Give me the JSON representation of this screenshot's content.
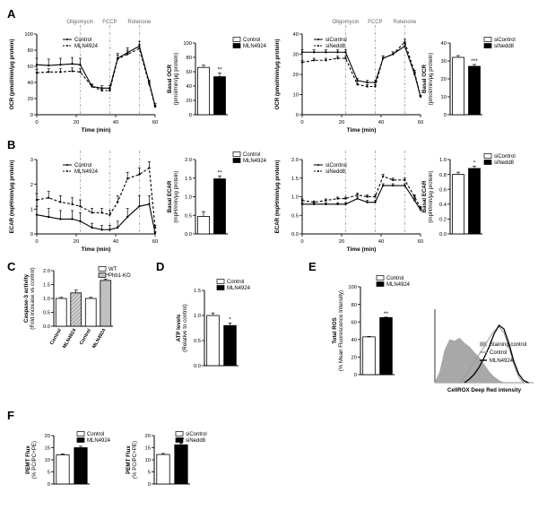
{
  "panels": [
    {
      "letter": "A"
    },
    {
      "letter": "B"
    },
    {
      "letter": "C"
    },
    {
      "letter": "D"
    },
    {
      "letter": "E"
    },
    {
      "letter": "F"
    }
  ],
  "colors": {
    "line": "#000000",
    "inj": "#999999",
    "inj_label": "#666666",
    "fill_dark": "#000000",
    "fill_light": "#ffffff",
    "fill_hatch": "#bfbfbf",
    "hist_gray": "#a8a8a8",
    "hist_light": "#999999"
  },
  "chart_data": [
    {
      "id": "A1",
      "type": "line",
      "xlabel": "Time (min)",
      "ylabel": "OCR (pmol/min/μg protein)",
      "xlim": [
        0,
        60
      ],
      "ylim": [
        0,
        100
      ],
      "xticks": [
        "0",
        "20",
        "40",
        "60"
      ],
      "yticks": [
        "0",
        "20",
        "40",
        "60",
        "80",
        "100"
      ],
      "injections": [
        {
          "label": "Oligomycin",
          "x": 22
        },
        {
          "label": "FCCP",
          "x": 37
        },
        {
          "label": "Rotenone",
          "x": 52
        }
      ],
      "legend": [
        "Control",
        "MLN4924"
      ],
      "series": [
        {
          "name": "Control",
          "dash": false,
          "x": [
            0,
            6,
            12,
            18,
            22,
            28,
            33,
            37,
            41,
            46,
            52,
            57,
            60
          ],
          "y": [
            62,
            61,
            62,
            63,
            62,
            35,
            33,
            33,
            70,
            77,
            85,
            40,
            11
          ],
          "err": [
            8,
            8,
            8,
            8,
            8,
            3,
            3,
            3,
            6,
            6,
            6,
            3,
            3
          ]
        },
        {
          "name": "MLN4924",
          "dash": true,
          "x": [
            0,
            6,
            12,
            18,
            22,
            28,
            33,
            37,
            41,
            46,
            52,
            57,
            60
          ],
          "y": [
            52,
            53,
            53,
            54,
            53,
            35,
            30,
            30,
            69,
            75,
            82,
            38,
            10
          ],
          "err": [
            4,
            4,
            4,
            4,
            4,
            2,
            2,
            2,
            5,
            5,
            5,
            3,
            2
          ]
        }
      ]
    },
    {
      "id": "A2",
      "type": "bar",
      "xlabel": "",
      "ylabel": "Basal OCR (pmol/min/μg protein)",
      "ylim": [
        0,
        100
      ],
      "yticks": [
        "0",
        "20",
        "40",
        "60",
        "80",
        "100"
      ],
      "categories": [
        "Control",
        "MLN4924"
      ],
      "values": [
        66,
        53
      ],
      "err": [
        3,
        5
      ],
      "fills": [
        "white",
        "black"
      ],
      "sig": [
        {
          "bar": 1,
          "text": "**"
        }
      ],
      "legend": [
        "Control",
        "MLN4924"
      ]
    },
    {
      "id": "A3",
      "type": "line",
      "xlabel": "Time (min)",
      "ylabel": "OCR (pmol/min/μg protein)",
      "xlim": [
        0,
        60
      ],
      "ylim": [
        0,
        40
      ],
      "xticks": [
        "0",
        "20",
        "40",
        "60"
      ],
      "yticks": [
        "0",
        "10",
        "20",
        "30",
        "40"
      ],
      "injections": [
        {
          "label": "Oligomycin",
          "x": 22
        },
        {
          "label": "FCCP",
          "x": 37
        },
        {
          "label": "Rotenone",
          "x": 52
        }
      ],
      "legend": [
        "siControl",
        "siNedd8"
      ],
      "series": [
        {
          "name": "siControl",
          "dash": false,
          "x": [
            0,
            6,
            12,
            18,
            22,
            28,
            33,
            37,
            41,
            46,
            52,
            57,
            60
          ],
          "y": [
            31,
            31,
            31,
            31,
            31,
            17,
            16,
            16,
            28,
            30,
            34,
            20,
            9
          ],
          "err": [
            1.2,
            1.2,
            1.2,
            1.2,
            1.2,
            1,
            1,
            1,
            1.2,
            1.2,
            1.5,
            1,
            0.5
          ]
        },
        {
          "name": "siNedd8",
          "dash": true,
          "x": [
            0,
            6,
            12,
            18,
            22,
            28,
            33,
            37,
            41,
            46,
            52,
            57,
            60
          ],
          "y": [
            26,
            27,
            27,
            28,
            28,
            15,
            14,
            14,
            28,
            30,
            36,
            21,
            9
          ],
          "err": [
            1,
            1,
            1,
            1,
            1,
            1,
            1,
            1,
            1.2,
            1.2,
            1.5,
            1,
            0.5
          ]
        }
      ]
    },
    {
      "id": "A4",
      "type": "bar",
      "xlabel": "",
      "ylabel": "Basal OCR (pmol/min/μg protein)",
      "ylim": [
        0,
        40
      ],
      "yticks": [
        "0",
        "10",
        "20",
        "30",
        "40"
      ],
      "categories": [
        "siControl",
        "siNedd8"
      ],
      "values": [
        32,
        27
      ],
      "err": [
        1,
        1
      ],
      "fills": [
        "white",
        "black"
      ],
      "sig": [
        {
          "bar": 1,
          "text": "***"
        }
      ],
      "legend": [
        "siControl",
        "siNedd8"
      ]
    },
    {
      "id": "B1",
      "type": "line",
      "xlabel": "Time (min)",
      "ylabel": "ECAR (mpH/min/μg protein)",
      "xlim": [
        0,
        60
      ],
      "ylim": [
        0,
        3.5
      ],
      "xticks": [
        "0",
        "20",
        "40",
        "60"
      ],
      "yticks": [
        "0",
        "1",
        "2",
        "3"
      ],
      "injections": [
        {
          "label": "",
          "x": 22
        },
        {
          "label": "",
          "x": 37
        },
        {
          "label": "",
          "x": 52
        }
      ],
      "legend": [
        "Control",
        "MLN4924"
      ],
      "series": [
        {
          "name": "Control",
          "dash": false,
          "x": [
            0,
            6,
            12,
            18,
            22,
            28,
            33,
            37,
            41,
            46,
            52,
            57,
            60
          ],
          "y": [
            0.9,
            0.8,
            0.7,
            0.7,
            0.6,
            0.3,
            0.2,
            0.2,
            0.3,
            0.8,
            1.3,
            1.4,
            0.05
          ],
          "err": [
            0.4,
            0.4,
            0.4,
            0.4,
            0.4,
            0.2,
            0.2,
            0.2,
            0.3,
            0.4,
            0.5,
            0.4,
            0.05
          ]
        },
        {
          "name": "MLN4924",
          "dash": true,
          "x": [
            0,
            6,
            12,
            18,
            22,
            28,
            33,
            37,
            41,
            46,
            52,
            57,
            60
          ],
          "y": [
            1.6,
            1.7,
            1.5,
            1.4,
            1.3,
            1.0,
            1.0,
            0.9,
            1.5,
            2.6,
            2.8,
            3.1,
            0.3
          ],
          "err": [
            0.3,
            0.3,
            0.3,
            0.3,
            0.3,
            0.2,
            0.2,
            0.2,
            0.3,
            0.3,
            0.3,
            0.3,
            0.1
          ]
        }
      ]
    },
    {
      "id": "B2",
      "type": "bar",
      "xlabel": "",
      "ylabel": "Basal ECAR (mpH/min/μg protein)",
      "ylim": [
        0,
        2.0
      ],
      "yticks": [
        "0.0",
        "0.5",
        "1.0",
        "1.5",
        "2.0"
      ],
      "categories": [
        "Control",
        "MLN4924"
      ],
      "values": [
        0.47,
        1.48
      ],
      "err": [
        0.13,
        0.08
      ],
      "fills": [
        "white",
        "black"
      ],
      "sig": [
        {
          "bar": 1,
          "text": "**"
        }
      ],
      "legend": [
        "Control",
        "MLN4924"
      ]
    },
    {
      "id": "B3",
      "type": "line",
      "xlabel": "Time (min)",
      "ylabel": "ECAR (mpH/min/μg protein)",
      "xlim": [
        0,
        60
      ],
      "ylim": [
        0,
        2.0
      ],
      "xticks": [
        "0",
        "20",
        "40",
        "60"
      ],
      "yticks": [
        "0.0",
        "0.5",
        "1.0",
        "1.5",
        "2.0"
      ],
      "injections": [
        {
          "label": "",
          "x": 22
        },
        {
          "label": "",
          "x": 37
        },
        {
          "label": "",
          "x": 52
        }
      ],
      "legend": [
        "siControl",
        "siNedd8"
      ],
      "series": [
        {
          "name": "siControl",
          "dash": false,
          "x": [
            0,
            6,
            12,
            18,
            22,
            28,
            33,
            37,
            41,
            46,
            52,
            57,
            60
          ],
          "y": [
            0.8,
            0.8,
            0.8,
            0.8,
            0.8,
            0.95,
            0.85,
            0.85,
            1.3,
            1.3,
            1.3,
            0.9,
            0.65
          ],
          "err": [
            0.04,
            0.04,
            0.04,
            0.04,
            0.04,
            0.05,
            0.05,
            0.05,
            0.05,
            0.05,
            0.05,
            0.05,
            0.04
          ]
        },
        {
          "name": "siNedd8",
          "dash": true,
          "x": [
            0,
            6,
            12,
            18,
            22,
            28,
            33,
            37,
            41,
            46,
            52,
            57,
            60
          ],
          "y": [
            0.9,
            0.85,
            0.9,
            0.95,
            0.95,
            1.05,
            1.0,
            1.0,
            1.55,
            1.45,
            1.45,
            1.0,
            0.7
          ],
          "err": [
            0.04,
            0.04,
            0.04,
            0.04,
            0.04,
            0.05,
            0.05,
            0.05,
            0.05,
            0.05,
            0.05,
            0.05,
            0.04
          ]
        }
      ]
    },
    {
      "id": "B4",
      "type": "bar",
      "xlabel": "",
      "ylabel": "Basal ECAR (mpH/min/μg protein)",
      "ylim": [
        0,
        1.0
      ],
      "yticks": [
        "0.0",
        "0.2",
        "0.4",
        "0.6",
        "0.8",
        "1.0"
      ],
      "categories": [
        "siControl",
        "siNedd8"
      ],
      "values": [
        0.8,
        0.88
      ],
      "err": [
        0.03,
        0.03
      ],
      "fills": [
        "white",
        "black"
      ],
      "sig": [
        {
          "bar": 1,
          "text": "*"
        }
      ],
      "legend": [
        "siControl",
        "siNedd8"
      ]
    },
    {
      "id": "C",
      "type": "bar",
      "xlabel": "",
      "ylabel": "Caspase-3 activity (Fold increase vs control)",
      "ylim": [
        0,
        2.0
      ],
      "yticks": [
        "0.0",
        "0.5",
        "1.0",
        "1.5",
        "2.0"
      ],
      "categories": [
        "Control",
        "MLN4924",
        "Control",
        "MLN4924"
      ],
      "values": [
        1.0,
        1.2,
        1.0,
        1.65
      ],
      "err": [
        0.04,
        0.1,
        0.04,
        0.05
      ],
      "fills": [
        "white",
        "hatch",
        "white",
        "lightgray"
      ],
      "sig": [
        {
          "bar": 3,
          "text": "***"
        }
      ],
      "legend": [
        "WT",
        "Phb1-KO"
      ]
    },
    {
      "id": "D",
      "type": "bar",
      "xlabel": "",
      "ylabel": "ATP levels (Relative to control)",
      "ylim": [
        0,
        1.5
      ],
      "yticks": [
        "0.0",
        "0.5",
        "1.0",
        "1.5"
      ],
      "categories": [
        "Control",
        "MLN4924"
      ],
      "values": [
        1.0,
        0.8
      ],
      "err": [
        0.05,
        0.05
      ],
      "fills": [
        "white",
        "black"
      ],
      "sig": [
        {
          "bar": 1,
          "text": "*"
        }
      ],
      "legend": [
        "Control",
        "MLN4924"
      ]
    },
    {
      "id": "E1",
      "type": "bar",
      "xlabel": "",
      "ylabel": "Total ROS (% Mean Fluorescence Intensity)",
      "ylim": [
        0,
        100
      ],
      "yticks": [
        "0",
        "20",
        "40",
        "60",
        "80",
        "100"
      ],
      "categories": [
        "Control",
        "MLN4924"
      ],
      "values": [
        43,
        65
      ],
      "err": [
        0.5,
        0.5
      ],
      "fills": [
        "white",
        "black"
      ],
      "sig": [
        {
          "bar": 1,
          "text": "**"
        }
      ],
      "legend": [
        "Control",
        "MLN4924"
      ]
    },
    {
      "id": "E2",
      "type": "area",
      "xlabel": "CellROX Deep Red intensity",
      "ylabel": "",
      "legend": [
        "Staining control",
        "Control",
        "MLN4924"
      ],
      "series": [
        {
          "name": "Staining control",
          "style": "filled",
          "x": [
            0,
            0.05,
            0.1,
            0.15,
            0.2,
            0.25,
            0.3,
            0.35,
            0.4,
            0.45,
            0.5,
            0.55,
            0.6,
            0.65,
            0.7,
            1.0
          ],
          "y": [
            0,
            0.15,
            0.45,
            0.6,
            0.58,
            0.62,
            0.55,
            0.5,
            0.42,
            0.35,
            0.25,
            0.15,
            0.08,
            0.03,
            0,
            0
          ]
        },
        {
          "name": "Control",
          "style": "light",
          "x": [
            0.25,
            0.3,
            0.35,
            0.4,
            0.45,
            0.5,
            0.55,
            0.6,
            0.65,
            0.7,
            0.75,
            0.8,
            0.85,
            0.9
          ],
          "y": [
            0,
            0.08,
            0.18,
            0.28,
            0.4,
            0.5,
            0.62,
            0.72,
            0.78,
            0.7,
            0.5,
            0.25,
            0.08,
            0
          ]
        },
        {
          "name": "MLN4924",
          "style": "dark",
          "x": [
            0.3,
            0.35,
            0.4,
            0.45,
            0.5,
            0.55,
            0.6,
            0.65,
            0.7,
            0.75,
            0.8,
            0.85,
            0.9,
            0.95
          ],
          "y": [
            0,
            0.05,
            0.12,
            0.22,
            0.35,
            0.5,
            0.68,
            0.8,
            0.75,
            0.55,
            0.3,
            0.12,
            0.03,
            0
          ]
        }
      ]
    },
    {
      "id": "F1",
      "type": "bar",
      "xlabel": "",
      "ylabel": "PEMT Flux (% PC/PC+PE)",
      "ylim": [
        0,
        20
      ],
      "yticks": [
        "0",
        "5",
        "10",
        "15",
        "20"
      ],
      "categories": [
        "Control",
        "MLN4924"
      ],
      "values": [
        12,
        15
      ],
      "err": [
        0.4,
        0.6
      ],
      "fills": [
        "white",
        "black"
      ],
      "sig": [
        {
          "bar": 1,
          "text": "*"
        }
      ],
      "legend": [
        "Control",
        "MLN4924"
      ]
    },
    {
      "id": "F2",
      "type": "bar",
      "xlabel": "",
      "ylabel": "PEMT Flux (% PC/PC+PE)",
      "ylim": [
        0,
        20
      ],
      "yticks": [
        "0",
        "5",
        "10",
        "15",
        "20"
      ],
      "categories": [
        "siControl",
        "siNedd8"
      ],
      "values": [
        12.2,
        16.2
      ],
      "err": [
        0.4,
        0.7
      ],
      "fills": [
        "white",
        "black"
      ],
      "sig": [
        {
          "bar": 1,
          "text": "***"
        }
      ],
      "legend": [
        "siControl",
        "siNedd8"
      ]
    }
  ]
}
